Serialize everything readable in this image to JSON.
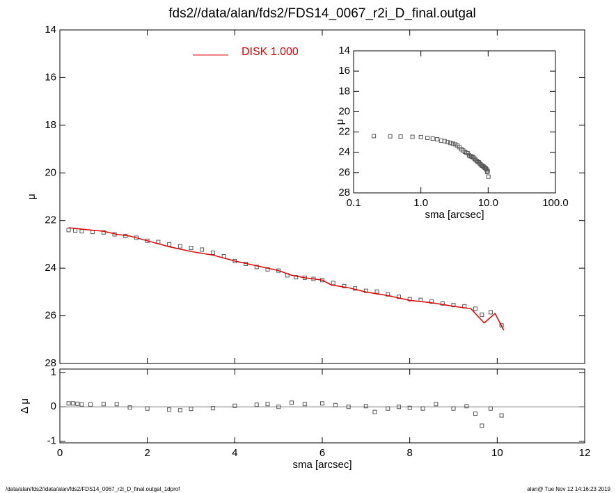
{
  "chart_data": {
    "title": "fds2//data/alan/fds2/FDS14_0067_r2i_D_final.outgal",
    "xlabel": "sma [arcsec]",
    "xlim": [
      0,
      12
    ],
    "xticks": [
      0,
      2,
      4,
      6,
      8,
      10,
      12
    ],
    "footer_left": "/data/alan/fds2//data/alan/fds2/FDS14_0067_r2i_D_final.outgal_1dprof",
    "footer_right": "alan@  Tue Nov 12 14:16:23 2019",
    "panels": [
      {
        "type": "scatter",
        "ylabel": "μ",
        "ylim": [
          28,
          14
        ],
        "yticks": [
          14,
          16,
          18,
          20,
          22,
          24,
          26,
          28
        ],
        "series": [
          {
            "color": "#555555",
            "style": "square",
            "x": [
              0.2,
              0.35,
              0.5,
              0.75,
              1.0,
              1.25,
              1.5,
              1.75,
              2.0,
              2.25,
              2.5,
              2.75,
              3.0,
              3.25,
              3.5,
              3.75,
              4.0,
              4.25,
              4.5,
              4.75,
              5.0,
              5.2,
              5.4,
              5.6,
              5.8,
              6.0,
              6.25,
              6.5,
              6.75,
              7.0,
              7.25,
              7.5,
              7.75,
              8.0,
              8.25,
              8.5,
              8.75,
              9.0,
              9.25,
              9.5,
              9.65,
              9.85,
              10.1
            ],
            "values": [
              22.4,
              22.42,
              22.45,
              22.48,
              22.5,
              22.58,
              22.65,
              22.72,
              22.85,
              22.9,
              23.0,
              23.08,
              23.15,
              23.22,
              23.35,
              23.5,
              23.7,
              23.82,
              23.95,
              24.05,
              24.1,
              24.3,
              24.38,
              24.4,
              24.45,
              24.5,
              24.62,
              24.75,
              24.85,
              24.95,
              24.98,
              25.1,
              25.2,
              25.3,
              25.33,
              25.4,
              25.48,
              25.55,
              25.6,
              25.7,
              25.95,
              25.85,
              26.4
            ]
          },
          {
            "name": "DISK  1.000",
            "color": "#e00000",
            "style": "line",
            "x": [
              0.2,
              0.6,
              1.0,
              1.3,
              1.6,
              2.0,
              2.5,
              3.0,
              3.5,
              4.0,
              4.5,
              5.0,
              5.3,
              5.6,
              6.0,
              6.2,
              6.6,
              7.0,
              7.5,
              8.0,
              8.5,
              9.0,
              9.4,
              9.7,
              9.95,
              10.15
            ],
            "values": [
              22.3,
              22.38,
              22.45,
              22.58,
              22.65,
              22.85,
              23.1,
              23.3,
              23.45,
              23.7,
              23.9,
              24.1,
              24.3,
              24.4,
              24.5,
              24.7,
              24.82,
              25.0,
              25.15,
              25.35,
              25.45,
              25.6,
              25.7,
              26.3,
              25.9,
              26.6
            ]
          }
        ]
      },
      {
        "type": "scatter",
        "ylabel": "Δ μ",
        "ylim": [
          -1.05,
          1.1
        ],
        "yticks": [
          -1,
          0,
          1
        ],
        "x": [
          0.2,
          0.3,
          0.4,
          0.5,
          0.7,
          1.0,
          1.3,
          1.6,
          2.0,
          2.5,
          2.75,
          3.0,
          3.5,
          4.0,
          4.5,
          4.75,
          5.0,
          5.3,
          5.6,
          6.0,
          6.3,
          6.6,
          7.0,
          7.2,
          7.5,
          7.75,
          8.0,
          8.3,
          8.6,
          9.0,
          9.3,
          9.5,
          9.65,
          9.85,
          10.1
        ],
        "values": [
          0.1,
          0.1,
          0.09,
          0.07,
          0.07,
          0.08,
          0.08,
          -0.02,
          -0.05,
          -0.08,
          -0.1,
          -0.06,
          -0.04,
          0.03,
          0.06,
          0.08,
          0.0,
          0.12,
          0.08,
          0.1,
          0.05,
          0.0,
          0.02,
          -0.15,
          -0.05,
          0.0,
          -0.03,
          -0.05,
          0.08,
          -0.05,
          0.02,
          -0.2,
          -0.55,
          -0.05,
          -0.25
        ]
      },
      {
        "type": "inset",
        "xlabel": "sma [arcsec]",
        "ylabel": "μ",
        "xscale": "log",
        "xlim": [
          0.1,
          100
        ],
        "xticks": [
          0.1,
          {
            "value": 1,
            "label": "1.0"
          },
          {
            "value": 10,
            "label": "10.0"
          },
          {
            "value": 100,
            "label": "100.0"
          }
        ],
        "ylim": [
          28,
          14
        ],
        "yticks": [
          14,
          16,
          18,
          20,
          22,
          24,
          26,
          28
        ]
      }
    ]
  }
}
